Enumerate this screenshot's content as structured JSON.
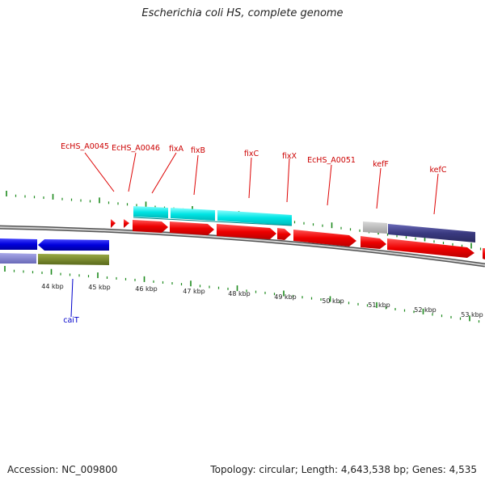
{
  "header": {
    "title": "Escherichia coli HS, complete genome"
  },
  "footer": {
    "accession": "Accession: NC_009800",
    "stats": "Topology: circular; Length: 4,643,538 bp; Genes: 4,535"
  },
  "colors": {
    "forward_cds": "#ee0000",
    "reverse_cds": "#0000dd",
    "rna_feature": "#00dddd",
    "other_feature": "#3a3a80",
    "backbone": "#888888",
    "ticks": "#1d8a1d",
    "forward_label": "#cc0000",
    "reverse_label": "#0000cc"
  },
  "scale_labels": [
    "44 kbp",
    "45 kbp",
    "46 kbp",
    "47 kbp",
    "48 kbp",
    "49 kbp",
    "50 kbp",
    "51 kbp",
    "52 kbp",
    "53 kbp"
  ],
  "gene_labels": {
    "forward": [
      "EcHS_A0045",
      "EcHS_A0046",
      "fixA",
      "fixB",
      "fixC",
      "fixX",
      "EcHS_A0051",
      "kefF",
      "kefC"
    ],
    "reverse": [
      "caiT"
    ]
  }
}
